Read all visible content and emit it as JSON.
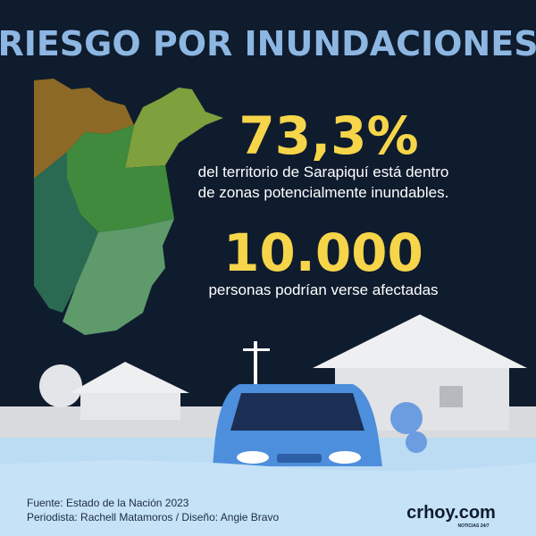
{
  "header": {
    "title": "RIESGO POR INUNDACIONES"
  },
  "stats": [
    {
      "value": "73,3%",
      "description": [
        "del territorio de Sarapiquí está dentro",
        "de zonas potencialmente inundables."
      ]
    },
    {
      "value": "10.000",
      "description": [
        "personas podrían verse afectadas"
      ]
    }
  ],
  "footer": {
    "source": "Fuente: Estado de la Nación 2023",
    "credits": "Periodista: Rachell Matamoros / Diseño: Angie Bravo",
    "logo": "crhoy.com",
    "logo_tagline": "NOTICIAS 24/7"
  }
}
